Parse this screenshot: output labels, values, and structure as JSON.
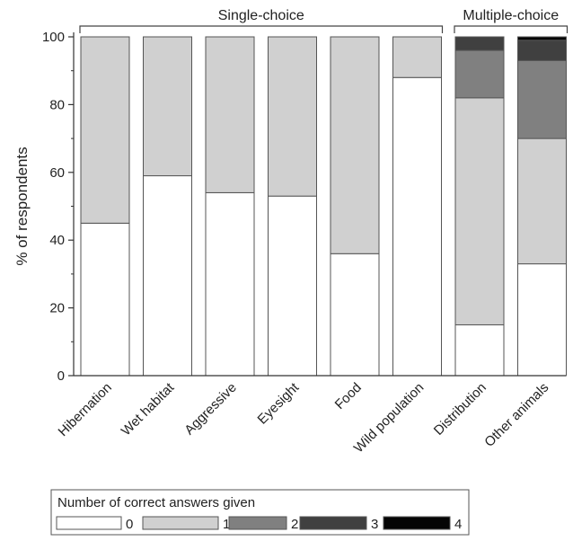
{
  "colors": {
    "0": "#ffffff",
    "1": "#d0d0d0",
    "2": "#808080",
    "3": "#404040",
    "4": "#050505",
    "border": "#555555"
  },
  "chart_data": {
    "type": "bar",
    "stacked": true,
    "title": "",
    "xlabel": "",
    "ylabel": "% of respondents",
    "ylim": [
      0,
      100
    ],
    "yticks": [
      0,
      20,
      40,
      60,
      80,
      100
    ],
    "grid": false,
    "groups": [
      {
        "label": "Single-choice",
        "categories": [
          "Hibernation",
          "Wet habitat",
          "Aggressive",
          "Eyesight",
          "Food",
          "Wild population"
        ]
      },
      {
        "label": "Multiple-choice",
        "categories": [
          "Distribution",
          "Other animals"
        ]
      }
    ],
    "categories": [
      "Hibernation",
      "Wet habitat",
      "Aggressive",
      "Eyesight",
      "Food",
      "Wild population",
      "Distribution",
      "Other animals"
    ],
    "legend_title": "Number of correct answers given",
    "legend_position": "bottom",
    "series": [
      {
        "name": "0",
        "values": [
          45,
          59,
          54,
          53,
          36,
          88,
          15,
          33
        ]
      },
      {
        "name": "1",
        "values": [
          55,
          41,
          46,
          47,
          64,
          12,
          67,
          37
        ]
      },
      {
        "name": "2",
        "values": [
          0,
          0,
          0,
          0,
          0,
          0,
          14,
          23
        ]
      },
      {
        "name": "3",
        "values": [
          0,
          0,
          0,
          0,
          0,
          0,
          4,
          6
        ]
      },
      {
        "name": "4",
        "values": [
          0,
          0,
          0,
          0,
          0,
          0,
          0,
          1
        ]
      }
    ]
  }
}
